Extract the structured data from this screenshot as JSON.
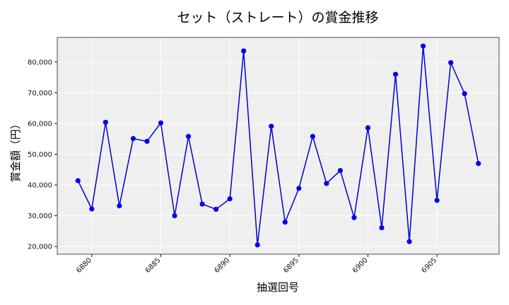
{
  "colors": {
    "line": "#0000cc",
    "marker": "#0000ee",
    "plot_background": "#efefef",
    "grid": "#ffffff"
  },
  "chart_data": {
    "type": "line",
    "title": "セット（ストレート）の賞金推移",
    "xlabel": "抽選回号",
    "ylabel": "賞金額（円）",
    "grid": true,
    "xlim": [
      6877.5,
      6909.5
    ],
    "ylim": [
      17500,
      88000
    ],
    "x_ticks": [
      6880,
      6885,
      6890,
      6895,
      6900,
      6905
    ],
    "x_tick_labels": [
      "6880",
      "6885",
      "6890",
      "6895",
      "6900",
      "6905"
    ],
    "y_ticks": [
      20000,
      30000,
      40000,
      50000,
      60000,
      70000,
      80000
    ],
    "y_tick_labels": [
      "20,000",
      "30,000",
      "40,000",
      "50,000",
      "60,000",
      "70,000",
      "80,000"
    ],
    "series": [
      {
        "x": [
          6879,
          6880,
          6881,
          6882,
          6883,
          6884,
          6885,
          6886,
          6887,
          6888,
          6889,
          6890,
          6891,
          6892,
          6893,
          6894,
          6895,
          6896,
          6897,
          6898,
          6899,
          6900,
          6901,
          6902,
          6903,
          6904,
          6905,
          6906,
          6907,
          6908
        ],
        "y": [
          41400,
          32200,
          60400,
          33200,
          55100,
          54200,
          60200,
          30000,
          55800,
          33800,
          32100,
          35500,
          83600,
          20500,
          59100,
          27900,
          38900,
          55800,
          40500,
          44700,
          29400,
          58600,
          26100,
          76000,
          21600,
          85200,
          35000,
          79800,
          69700,
          47000
        ]
      }
    ]
  }
}
